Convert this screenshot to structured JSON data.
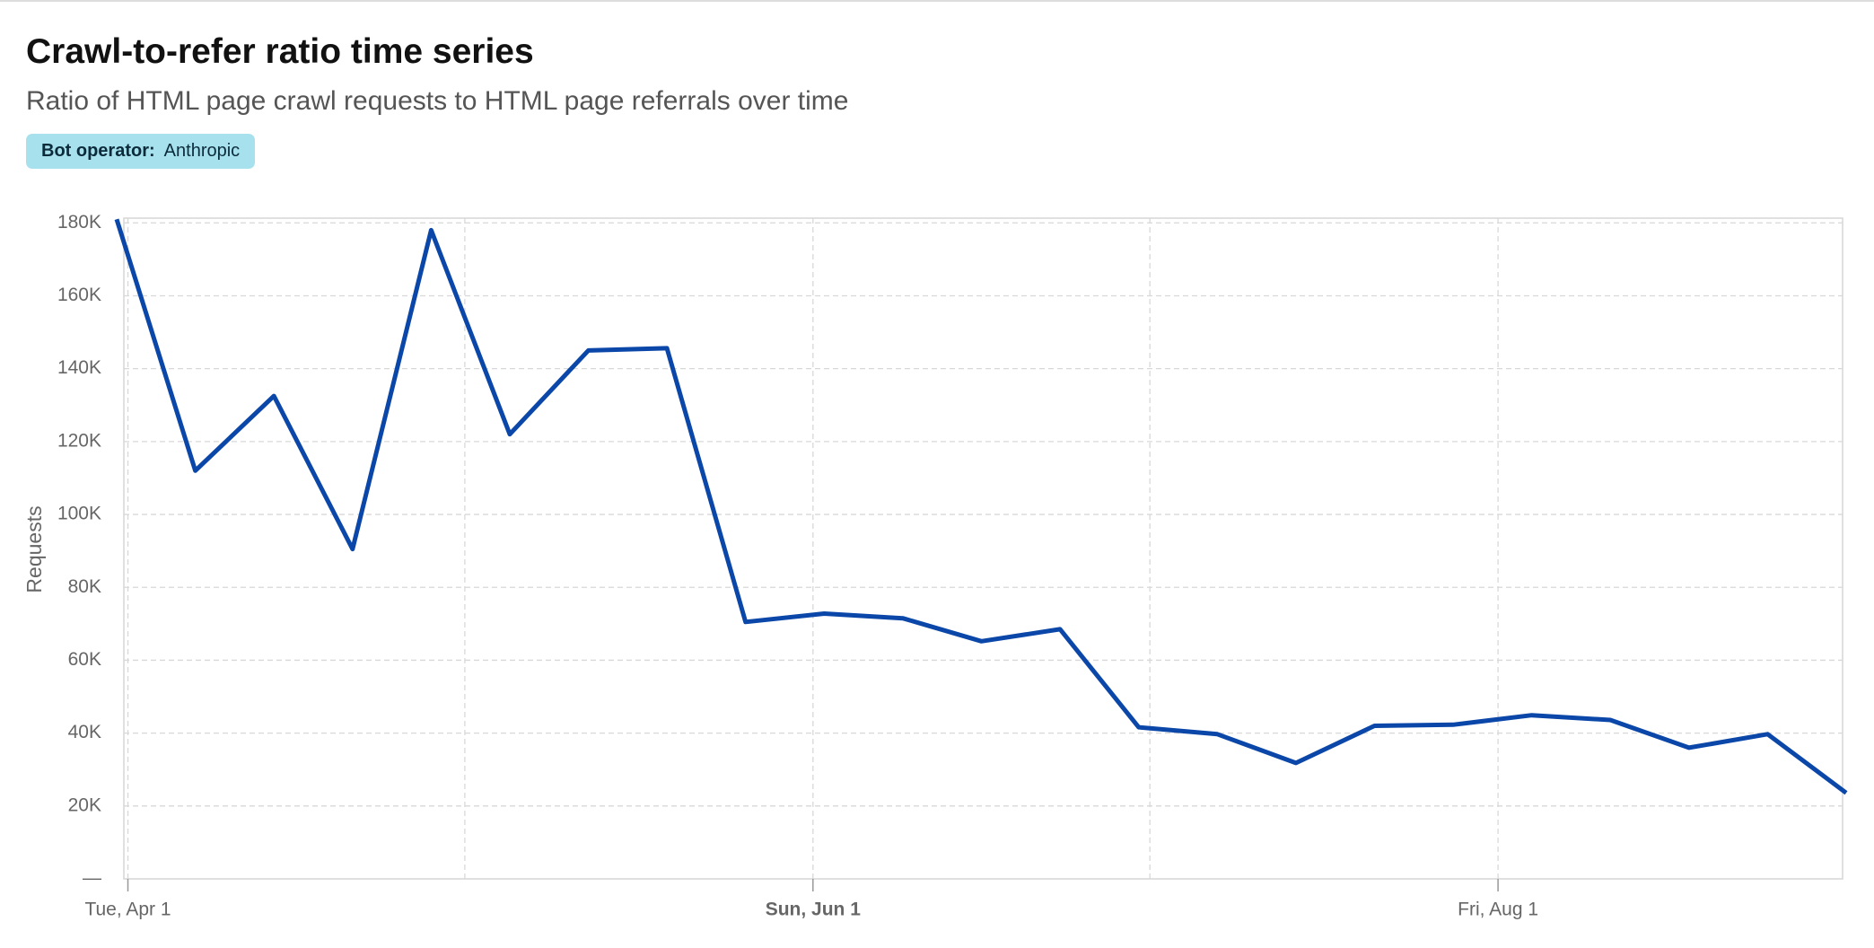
{
  "title": "Crawl-to-refer ratio time series",
  "subtitle": "Ratio of HTML page crawl requests to HTML page referrals over time",
  "filter": {
    "label": "Bot operator:",
    "value": "Anthropic"
  },
  "chart_data": {
    "type": "line",
    "y_label": "Requests",
    "x": [
      "Mar 31",
      "Apr 7",
      "Apr 14",
      "Apr 21",
      "Apr 28",
      "May 5",
      "May 12",
      "May 19",
      "May 26",
      "Jun 2",
      "Jun 9",
      "Jun 16",
      "Jun 23",
      "Jun 30",
      "Jul 7",
      "Jul 14",
      "Jul 21",
      "Jul 28",
      "Aug 4",
      "Aug 11",
      "Aug 18",
      "Aug 25",
      "Sep 1"
    ],
    "series": [
      {
        "name": "Anthropic",
        "color": "#0b47a8",
        "values": [
          181000,
          112000,
          132500,
          90500,
          178000,
          122000,
          145000,
          145600,
          70500,
          72800,
          71500,
          65200,
          68500,
          41600,
          39700,
          31800,
          42000,
          42300,
          44900,
          43600,
          36000,
          39700,
          23600
        ]
      }
    ],
    "xlim": [
      "Mar 31",
      "Sep 1"
    ],
    "xticks": [
      {
        "value": "Apr 1",
        "label": "Tue, Apr 1"
      },
      {
        "value": "Jun 1",
        "label": "Sun, Jun 1"
      },
      {
        "value": "Aug 1",
        "label": "Fri, Aug 1"
      }
    ],
    "x_minor_grid": [
      "May 1",
      "Jul 1"
    ],
    "bold_xtick": "Jun 1",
    "ylim": [
      0,
      181300
    ],
    "yticks": [
      {
        "value": 0,
        "label": "—"
      },
      {
        "value": 20000,
        "label": "20K"
      },
      {
        "value": 40000,
        "label": "40K"
      },
      {
        "value": 60000,
        "label": "60K"
      },
      {
        "value": 80000,
        "label": "80K"
      },
      {
        "value": 100000,
        "label": "100K"
      },
      {
        "value": 120000,
        "label": "120K"
      },
      {
        "value": 140000,
        "label": "140K"
      },
      {
        "value": 160000,
        "label": "160K"
      },
      {
        "value": 180000,
        "label": "180K"
      }
    ],
    "grid": true
  }
}
